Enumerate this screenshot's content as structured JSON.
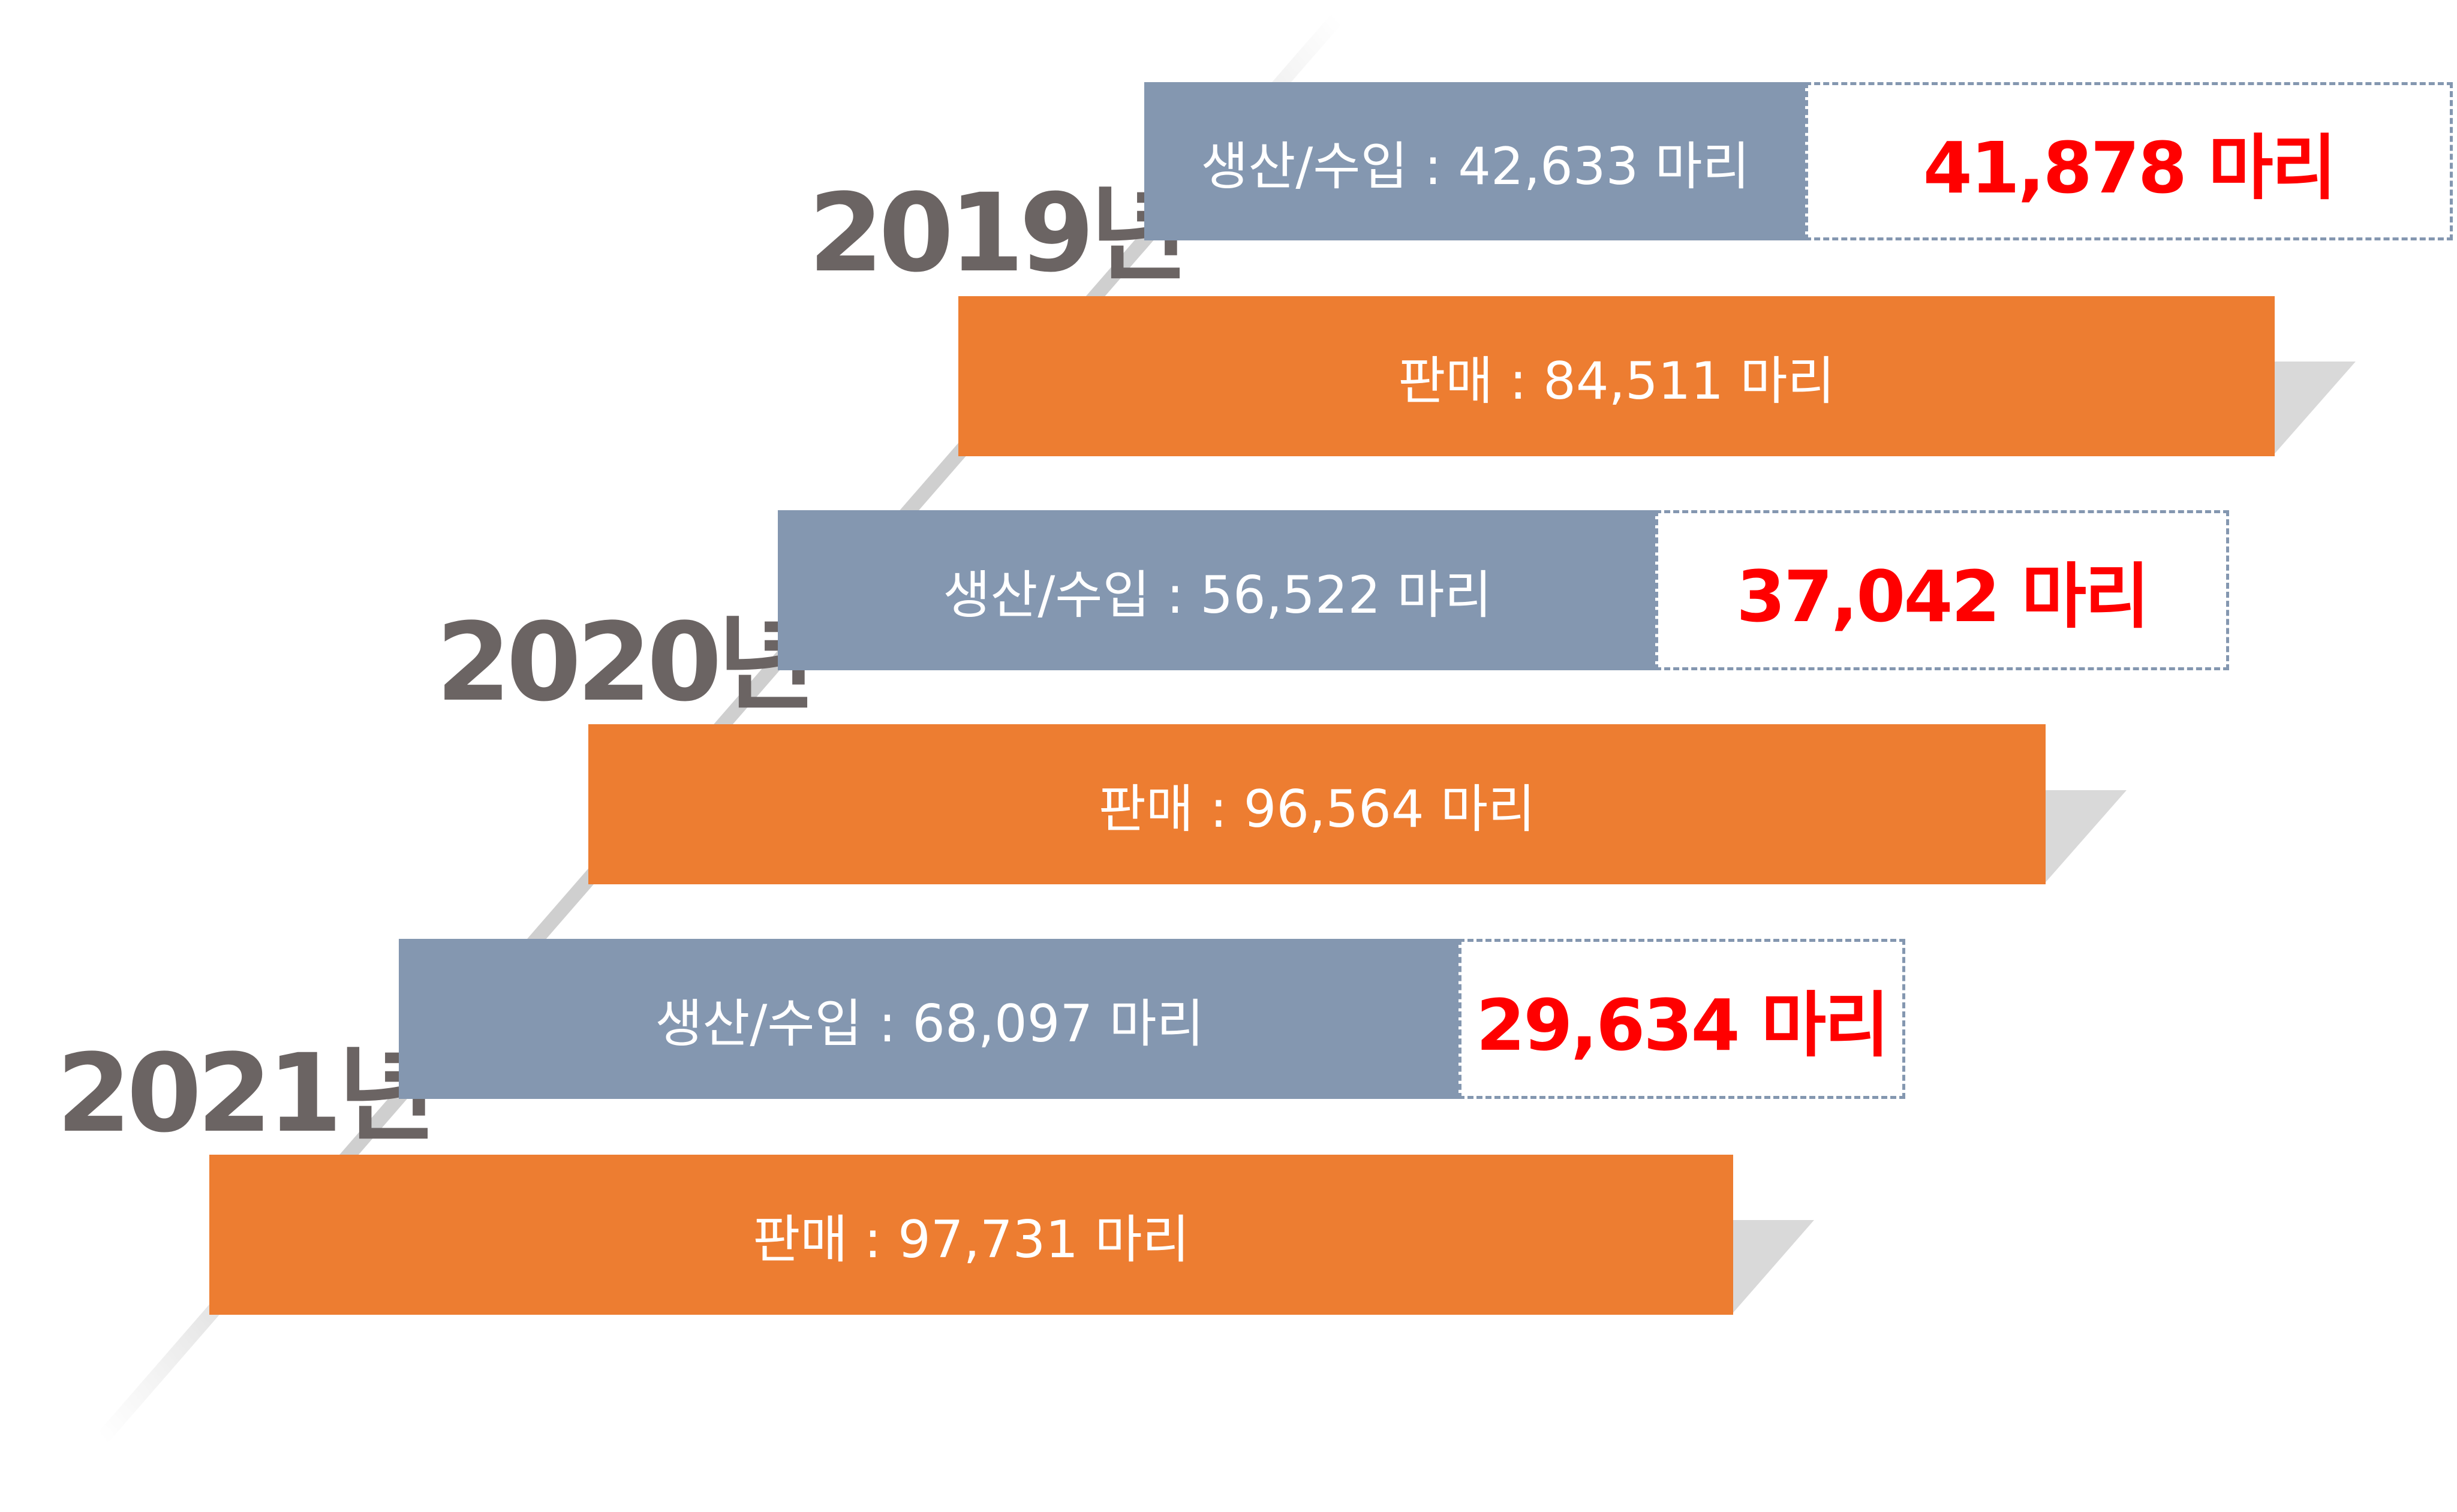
{
  "chart_data": {
    "type": "bar",
    "categories": [
      "2019년",
      "2020년",
      "2021년"
    ],
    "series": [
      {
        "name": "생산/수입",
        "values": [
          42633,
          56522,
          68097
        ],
        "labels": [
          "생산/수입 : 42,633 마리",
          "생산/수입 : 56,522 마리",
          "생산/수입 : 68,097 마리"
        ]
      },
      {
        "name": "판매",
        "values": [
          84511,
          96564,
          97731
        ],
        "labels": [
          "판매 : 84,511 마리",
          "판매 : 96,564 마리",
          "판매 : 97,731 마리"
        ]
      }
    ],
    "differences": {
      "values": [
        41878,
        37042,
        29634
      ],
      "labels": [
        "41,878 마리",
        "37,042 마리",
        "29,634 마리"
      ]
    },
    "title": "",
    "xlabel": "",
    "ylabel": "",
    "colors": {
      "production": "#8497b0",
      "sales": "#ed7d31",
      "difference_text": "#ff0000",
      "difference_border": "#8497b0",
      "year_label": "#6b6463",
      "shadow": "#d9d9d9"
    }
  }
}
